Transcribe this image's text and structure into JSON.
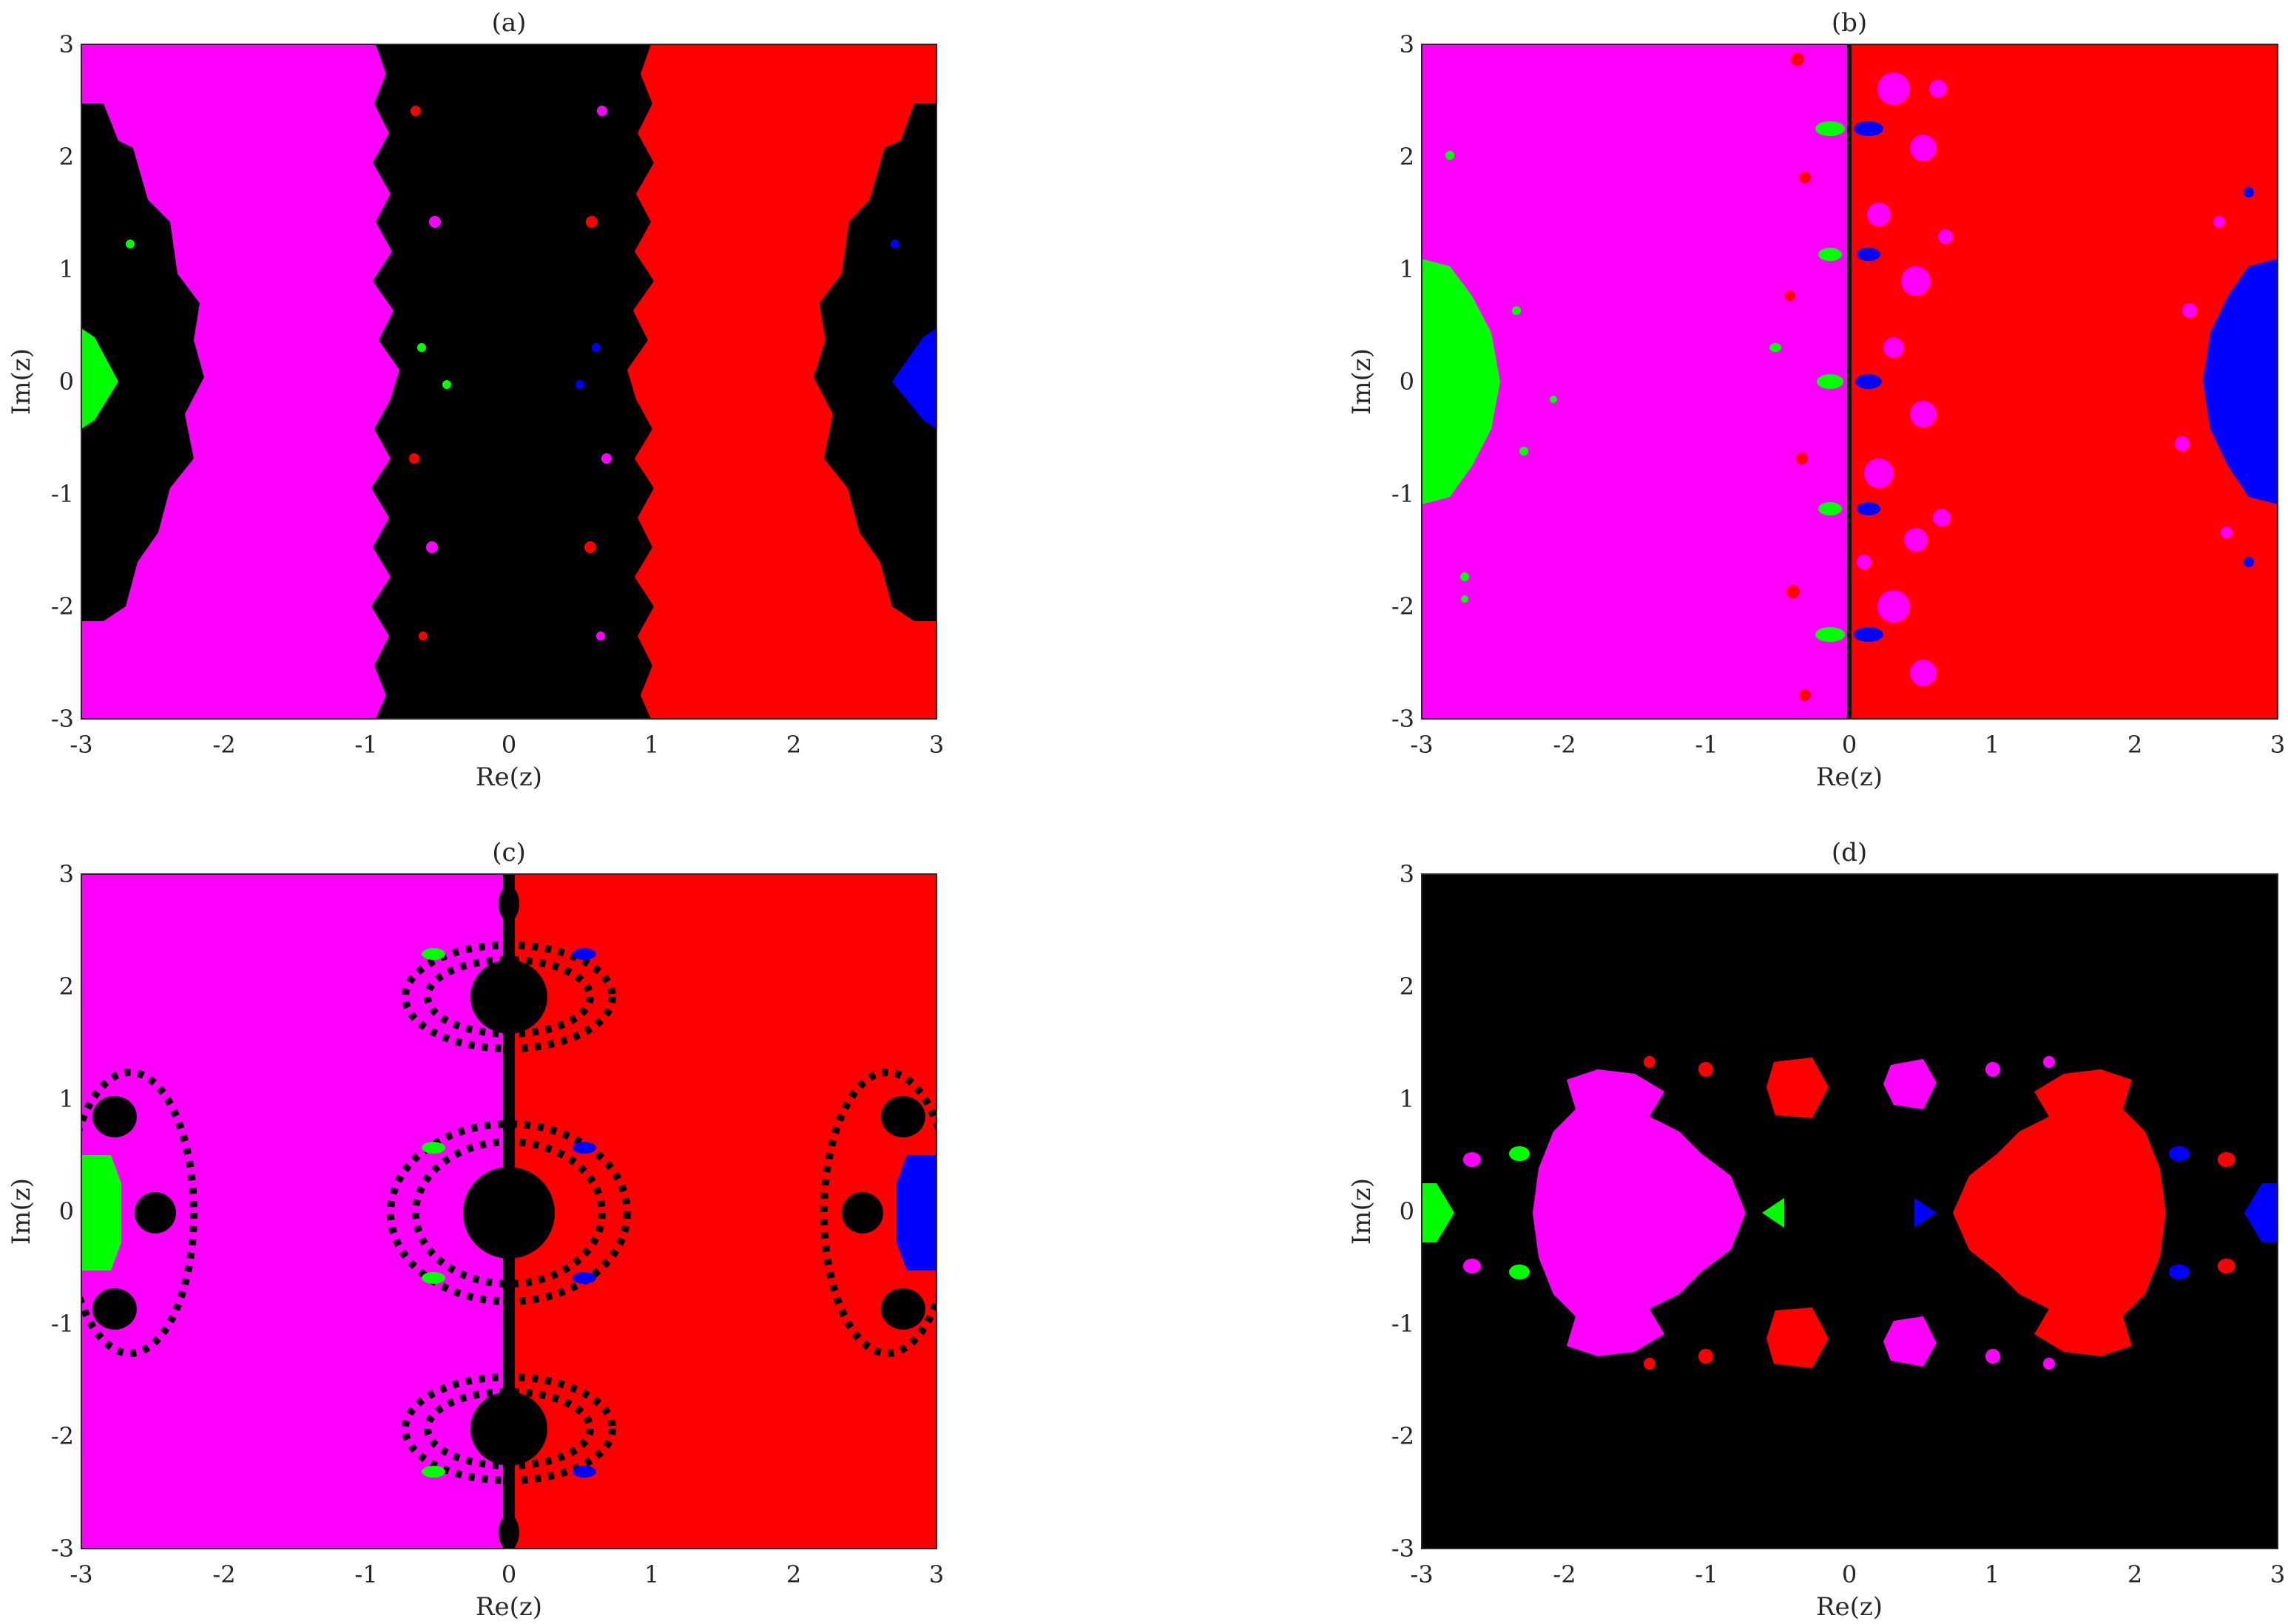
{
  "chart_data": [
    {
      "type": "heatmap",
      "subtitle": "(a)",
      "xlabel": "Re(z)",
      "ylabel": "Im(z)",
      "xlim": [
        -3,
        3
      ],
      "ylim": [
        -3,
        3
      ],
      "xticks": [
        "-3",
        "-2",
        "-1",
        "0",
        "1",
        "2",
        "3"
      ],
      "yticks": [
        "-3",
        "-2",
        "-1",
        "0",
        "1",
        "2",
        "3"
      ],
      "grid": false,
      "legend": "none",
      "basins": [
        {
          "color": "#ff00ff",
          "region": "left half plane (Re < -0.9)"
        },
        {
          "color": "#ff0000",
          "region": "right half plane (Re > 0.9)"
        },
        {
          "color": "#000000",
          "region": "central vertical band and lobes at Re = ±3"
        },
        {
          "color": "#00ff00",
          "region": "small basin near z = -3"
        },
        {
          "color": "#0000ff",
          "region": "small basin near z = 3"
        }
      ]
    },
    {
      "type": "heatmap",
      "subtitle": "(b)",
      "xlabel": "Re(z)",
      "ylabel": "Im(z)",
      "xlim": [
        -3,
        3
      ],
      "ylim": [
        -3,
        3
      ],
      "xticks": [
        "-3",
        "-2",
        "-1",
        "0",
        "1",
        "2",
        "3"
      ],
      "yticks": [
        "-3",
        "-2",
        "-1",
        "0",
        "1",
        "2",
        "3"
      ],
      "grid": false,
      "legend": "none",
      "basins": [
        {
          "color": "#ff00ff",
          "region": "left half plane (Re < 0)"
        },
        {
          "color": "#ff0000",
          "region": "right half plane (Re > 0)"
        },
        {
          "color": "#000000",
          "region": "line Re = 0"
        },
        {
          "color": "#00ff00",
          "region": "basin near z = -3"
        },
        {
          "color": "#0000ff",
          "region": "basin near z = 3"
        }
      ]
    },
    {
      "type": "heatmap",
      "subtitle": "(c)",
      "xlabel": "Re(z)",
      "ylabel": "Im(z)",
      "xlim": [
        -3,
        3
      ],
      "ylim": [
        -3,
        3
      ],
      "xticks": [
        "-3",
        "-2",
        "-1",
        "0",
        "1",
        "2",
        "3"
      ],
      "yticks": [
        "-3",
        "-2",
        "-1",
        "0",
        "1",
        "2",
        "3"
      ],
      "grid": false,
      "legend": "none",
      "basins": [
        {
          "color": "#ff00ff",
          "region": "left half plane (Re < 0)"
        },
        {
          "color": "#ff0000",
          "region": "right half plane (Re > 0)"
        },
        {
          "color": "#000000",
          "region": "bulbs on Re = 0 at Im = 0, ±2.2 and near Re = ±3"
        },
        {
          "color": "#00ff00",
          "region": "basin near z = -3"
        },
        {
          "color": "#0000ff",
          "region": "basin near z = 3"
        }
      ]
    },
    {
      "type": "heatmap",
      "subtitle": "(d)",
      "xlabel": "Re(z)",
      "ylabel": "Im(z)",
      "xlim": [
        -3,
        3
      ],
      "ylim": [
        -3,
        3
      ],
      "xticks": [
        "-3",
        "-2",
        "-1",
        "0",
        "1",
        "2",
        "3"
      ],
      "yticks": [
        "-3",
        "-2",
        "-1",
        "0",
        "1",
        "2",
        "3"
      ],
      "grid": false,
      "legend": "none",
      "basins": [
        {
          "color": "#000000",
          "region": "exterior (|Im| > 1.4) and central region"
        },
        {
          "color": "#ff00ff",
          "region": "left lobe centred near z = -1.4"
        },
        {
          "color": "#ff0000",
          "region": "right lobe centred near z = 1.4"
        },
        {
          "color": "#00ff00",
          "region": "basin near z = -3"
        },
        {
          "color": "#0000ff",
          "region": "basin near z = 3"
        }
      ]
    }
  ]
}
